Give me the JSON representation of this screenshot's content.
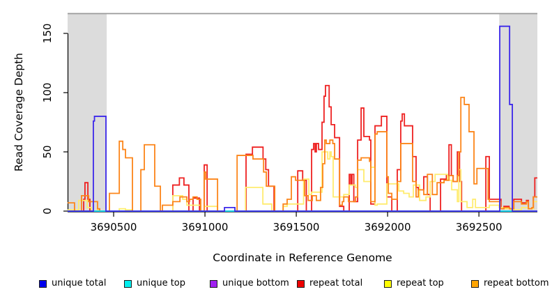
{
  "figure": {
    "type": "read-coverage-plot"
  },
  "legend": {
    "items": [
      {
        "label": "unique total",
        "fill": "#0000EE"
      },
      {
        "label": "unique top",
        "fill": "#00EEEE"
      },
      {
        "label": "unique bottom",
        "fill": "#A020F0"
      },
      {
        "label": "repeat total",
        "fill": "#EE0000"
      },
      {
        "label": "repeat top",
        "fill": "#FFFF00"
      },
      {
        "label": "repeat bottom",
        "fill": "#FFA500"
      }
    ]
  },
  "chart_data": {
    "type": "line",
    "line_style": "step-after",
    "title": "",
    "xlabel": "Coordinate in Reference Genome",
    "ylabel": "Read Coverage Depth",
    "x_domain": [
      3690248,
      3692820
    ],
    "y_domain": [
      0,
      167
    ],
    "x_ticks": [
      3690500,
      3691000,
      3691500,
      3692000,
      3692500
    ],
    "y_ticks": [
      0,
      50,
      100,
      150
    ],
    "grid": false,
    "legend_position": "bottom",
    "shaded_region_color": "#DCDCDC",
    "shaded_regions": [
      {
        "x0": 3690248,
        "x1": 3690462
      },
      {
        "x0": 3692611,
        "x1": 3692820
      }
    ],
    "series": [
      {
        "name": "repeat total",
        "color": "#EE2020",
        "points": [
          [
            3690248,
            0
          ],
          [
            3690336,
            10
          ],
          [
            3690343,
            24
          ],
          [
            3690359,
            10
          ],
          [
            3690370,
            0
          ],
          [
            3690824,
            22
          ],
          [
            3690860,
            28
          ],
          [
            3690885,
            22
          ],
          [
            3690912,
            0
          ],
          [
            3690935,
            11
          ],
          [
            3690970,
            0
          ],
          [
            3690996,
            39
          ],
          [
            3691012,
            0
          ],
          [
            3691225,
            48
          ],
          [
            3691260,
            54
          ],
          [
            3691318,
            44
          ],
          [
            3691333,
            35
          ],
          [
            3691348,
            21
          ],
          [
            3691378,
            0
          ],
          [
            3691508,
            34
          ],
          [
            3691535,
            26
          ],
          [
            3691555,
            0
          ],
          [
            3691584,
            52
          ],
          [
            3691595,
            57
          ],
          [
            3691603,
            50
          ],
          [
            3691610,
            57
          ],
          [
            3691622,
            52
          ],
          [
            3691641,
            75
          ],
          [
            3691652,
            97
          ],
          [
            3691660,
            106
          ],
          [
            3691680,
            88
          ],
          [
            3691691,
            73
          ],
          [
            3691710,
            62
          ],
          [
            3691737,
            4
          ],
          [
            3691760,
            0
          ],
          [
            3691790,
            31
          ],
          [
            3691798,
            22
          ],
          [
            3691805,
            31
          ],
          [
            3691815,
            8
          ],
          [
            3691836,
            60
          ],
          [
            3691855,
            87
          ],
          [
            3691870,
            63
          ],
          [
            3691901,
            60
          ],
          [
            3691908,
            6
          ],
          [
            3691931,
            72
          ],
          [
            3691966,
            80
          ],
          [
            3691996,
            12
          ],
          [
            3692023,
            0
          ],
          [
            3692053,
            35
          ],
          [
            3692072,
            76
          ],
          [
            3692080,
            82
          ],
          [
            3692092,
            72
          ],
          [
            3692137,
            46
          ],
          [
            3692156,
            20
          ],
          [
            3692168,
            18
          ],
          [
            3692198,
            29
          ],
          [
            3692218,
            14
          ],
          [
            3692233,
            0
          ],
          [
            3692290,
            27
          ],
          [
            3692322,
            30
          ],
          [
            3692336,
            56
          ],
          [
            3692349,
            30
          ],
          [
            3692359,
            25
          ],
          [
            3692382,
            50
          ],
          [
            3692394,
            25
          ],
          [
            3692405,
            0
          ],
          [
            3692538,
            46
          ],
          [
            3692557,
            10
          ],
          [
            3692611,
            10
          ],
          [
            3692621,
            2
          ],
          [
            3692637,
            4
          ],
          [
            3692665,
            2
          ],
          [
            3692691,
            10
          ],
          [
            3692721,
            10
          ],
          [
            3692733,
            7
          ],
          [
            3692760,
            9
          ],
          [
            3692771,
            2
          ],
          [
            3692798,
            12
          ],
          [
            3692806,
            28
          ],
          [
            3692820,
            28
          ]
        ]
      },
      {
        "name": "repeat top",
        "color": "#FFEC6E",
        "points": [
          [
            3690248,
            1
          ],
          [
            3690309,
            9
          ],
          [
            3690355,
            3
          ],
          [
            3690378,
            0
          ],
          [
            3690412,
            1
          ],
          [
            3690424,
            0
          ],
          [
            3690531,
            2
          ],
          [
            3690565,
            1
          ],
          [
            3690603,
            0
          ],
          [
            3690824,
            13
          ],
          [
            3690878,
            10
          ],
          [
            3690901,
            5
          ],
          [
            3690977,
            0
          ],
          [
            3690996,
            4
          ],
          [
            3691069,
            0
          ],
          [
            3691222,
            20
          ],
          [
            3691317,
            6
          ],
          [
            3691366,
            0
          ],
          [
            3691428,
            4
          ],
          [
            3691450,
            6
          ],
          [
            3691540,
            27
          ],
          [
            3691569,
            14
          ],
          [
            3691584,
            16
          ],
          [
            3691641,
            50
          ],
          [
            3691672,
            44
          ],
          [
            3691684,
            50
          ],
          [
            3691691,
            46
          ],
          [
            3691702,
            12
          ],
          [
            3691760,
            14
          ],
          [
            3691790,
            22
          ],
          [
            3691824,
            20
          ],
          [
            3691836,
            35
          ],
          [
            3691870,
            25
          ],
          [
            3691908,
            37
          ],
          [
            3691931,
            5
          ],
          [
            3691943,
            6
          ],
          [
            3691996,
            23
          ],
          [
            3692061,
            17
          ],
          [
            3692088,
            15
          ],
          [
            3692118,
            12
          ],
          [
            3692141,
            22
          ],
          [
            3692175,
            9
          ],
          [
            3692210,
            12
          ],
          [
            3692233,
            25
          ],
          [
            3692260,
            31
          ],
          [
            3692328,
            26
          ],
          [
            3692351,
            18
          ],
          [
            3692382,
            8
          ],
          [
            3692390,
            35
          ],
          [
            3692401,
            8
          ],
          [
            3692435,
            3
          ],
          [
            3692466,
            10
          ],
          [
            3692481,
            3
          ],
          [
            3692557,
            5
          ],
          [
            3692611,
            3
          ],
          [
            3692640,
            2
          ],
          [
            3692676,
            1
          ],
          [
            3692733,
            3
          ],
          [
            3692771,
            2
          ],
          [
            3692798,
            8
          ],
          [
            3692820,
            8
          ]
        ]
      },
      {
        "name": "repeat bottom",
        "color": "#FC8519",
        "points": [
          [
            3690248,
            7
          ],
          [
            3690286,
            0
          ],
          [
            3690324,
            13
          ],
          [
            3690363,
            8
          ],
          [
            3690412,
            2
          ],
          [
            3690424,
            0
          ],
          [
            3690477,
            15
          ],
          [
            3690531,
            59
          ],
          [
            3690550,
            52
          ],
          [
            3690565,
            45
          ],
          [
            3690603,
            0
          ],
          [
            3690649,
            35
          ],
          [
            3690668,
            56
          ],
          [
            3690725,
            21
          ],
          [
            3690756,
            0
          ],
          [
            3690767,
            5
          ],
          [
            3690824,
            8
          ],
          [
            3690863,
            12
          ],
          [
            3690901,
            8
          ],
          [
            3690916,
            10
          ],
          [
            3690935,
            12
          ],
          [
            3690957,
            10
          ],
          [
            3690977,
            0
          ],
          [
            3690996,
            33
          ],
          [
            3691004,
            27
          ],
          [
            3691069,
            0
          ],
          [
            3691176,
            47
          ],
          [
            3691263,
            44
          ],
          [
            3691321,
            33
          ],
          [
            3691336,
            21
          ],
          [
            3691382,
            0
          ],
          [
            3691428,
            6
          ],
          [
            3691450,
            10
          ],
          [
            3691473,
            29
          ],
          [
            3691496,
            26
          ],
          [
            3691546,
            13
          ],
          [
            3691565,
            9
          ],
          [
            3691588,
            13
          ],
          [
            3691610,
            9
          ],
          [
            3691633,
            20
          ],
          [
            3691645,
            40
          ],
          [
            3691656,
            60
          ],
          [
            3691664,
            57
          ],
          [
            3691684,
            60
          ],
          [
            3691700,
            57
          ],
          [
            3691710,
            44
          ],
          [
            3691737,
            5
          ],
          [
            3691752,
            8
          ],
          [
            3691760,
            12
          ],
          [
            3691786,
            8
          ],
          [
            3691824,
            12
          ],
          [
            3691836,
            43
          ],
          [
            3691855,
            45
          ],
          [
            3691901,
            42
          ],
          [
            3691908,
            8
          ],
          [
            3691931,
            65
          ],
          [
            3691943,
            67
          ],
          [
            3691996,
            29
          ],
          [
            3692004,
            15
          ],
          [
            3692023,
            10
          ],
          [
            3692053,
            25
          ],
          [
            3692072,
            57
          ],
          [
            3692137,
            25
          ],
          [
            3692156,
            12
          ],
          [
            3692168,
            18
          ],
          [
            3692198,
            14
          ],
          [
            3692218,
            31
          ],
          [
            3692245,
            14
          ],
          [
            3692271,
            24
          ],
          [
            3692309,
            26
          ],
          [
            3692336,
            30
          ],
          [
            3692359,
            25
          ],
          [
            3692382,
            30
          ],
          [
            3692390,
            50
          ],
          [
            3692401,
            96
          ],
          [
            3692420,
            90
          ],
          [
            3692446,
            67
          ],
          [
            3692473,
            23
          ],
          [
            3692489,
            36
          ],
          [
            3692550,
            10
          ],
          [
            3692557,
            8
          ],
          [
            3692611,
            8
          ],
          [
            3692618,
            2
          ],
          [
            3692637,
            3
          ],
          [
            3692668,
            2
          ],
          [
            3692691,
            8
          ],
          [
            3692721,
            8
          ],
          [
            3692733,
            6
          ],
          [
            3692760,
            8
          ],
          [
            3692771,
            2
          ],
          [
            3692790,
            3
          ],
          [
            3692798,
            12
          ],
          [
            3692820,
            12
          ]
        ]
      },
      {
        "name": "unique bottom",
        "color": "#A020F0",
        "points": [
          [
            3690248,
            0
          ],
          [
            3692820,
            0
          ]
        ]
      },
      {
        "name": "unique top",
        "color": "#00E5EE",
        "points": [
          [
            3690248,
            0
          ],
          [
            3692820,
            0
          ]
        ]
      },
      {
        "name": "unique total",
        "color": "#3C28EA",
        "points": [
          [
            3690248,
            0
          ],
          [
            3690389,
            76
          ],
          [
            3690395,
            80
          ],
          [
            3690458,
            0
          ],
          [
            3691107,
            3
          ],
          [
            3691164,
            0
          ],
          [
            3692614,
            156
          ],
          [
            3692668,
            90
          ],
          [
            3692683,
            0
          ],
          [
            3692820,
            0
          ]
        ]
      }
    ]
  }
}
